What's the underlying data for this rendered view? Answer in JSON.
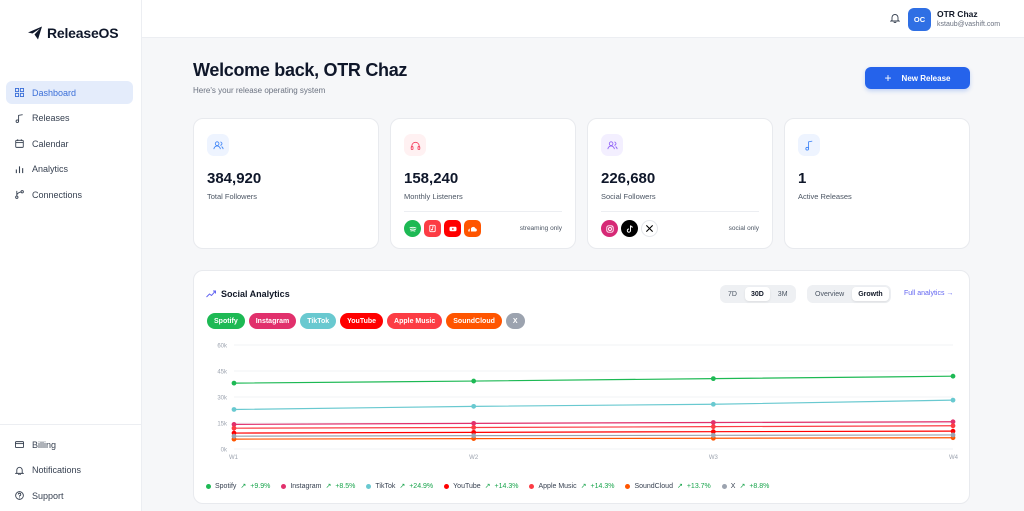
{
  "app": {
    "name": "ReleaseOS"
  },
  "sidebar": {
    "items": [
      {
        "label": "Dashboard",
        "icon": "grid-icon"
      },
      {
        "label": "Releases",
        "icon": "music-note-icon"
      },
      {
        "label": "Calendar",
        "icon": "calendar-icon"
      },
      {
        "label": "Analytics",
        "icon": "bar-chart-icon"
      },
      {
        "label": "Connections",
        "icon": "branch-icon"
      }
    ],
    "bottom_items": [
      {
        "label": "Billing",
        "icon": "credit-card-icon"
      },
      {
        "label": "Notifications",
        "icon": "bell-icon"
      },
      {
        "label": "Support",
        "icon": "help-circle-icon"
      }
    ]
  },
  "header": {
    "avatar_initials": "OC",
    "user_name": "OTR Chaz",
    "user_email": "kstaub@vashift.com"
  },
  "main": {
    "welcome": "Welcome back, OTR Chaz",
    "subtitle": "Here's your release operating system",
    "new_release_label": "New Release"
  },
  "stats": [
    {
      "value": "384,920",
      "label": "Total Followers",
      "icon": "users-icon"
    },
    {
      "value": "158,240",
      "label": "Monthly Listeners",
      "icon": "headphones-icon",
      "note": "streaming only"
    },
    {
      "value": "226,680",
      "label": "Social Followers",
      "icon": "users-icon",
      "note": "social only"
    },
    {
      "value": "1",
      "label": "Active Releases",
      "icon": "music-note-icon"
    }
  ],
  "analytics": {
    "title": "Social Analytics",
    "ranges": [
      "7D",
      "30D",
      "3M"
    ],
    "selected_range": "30D",
    "views": [
      "Overview",
      "Growth"
    ],
    "selected_view": "Growth",
    "full_link": "Full analytics →",
    "platforms": [
      {
        "name": "Spotify",
        "color": "#1db954"
      },
      {
        "name": "Instagram",
        "color": "#e1306c"
      },
      {
        "name": "TikTok",
        "color": "#69c9d0"
      },
      {
        "name": "YouTube",
        "color": "#ff0000"
      },
      {
        "name": "Apple Music",
        "color": "#fc3c44"
      },
      {
        "name": "SoundCloud",
        "color": "#ff5500"
      },
      {
        "name": "X",
        "color": "#9ca3af"
      }
    ]
  },
  "chart_data": {
    "type": "line",
    "x": [
      "W1",
      "W2",
      "W3",
      "W4"
    ],
    "yticks": [
      "0k",
      "15k",
      "30k",
      "45k",
      "60k"
    ],
    "ylim": [
      0,
      60000
    ],
    "series": [
      {
        "name": "Spotify",
        "values": [
          38000,
          39200,
          40600,
          42000
        ],
        "color": "#1db954",
        "delta": "+9.9%"
      },
      {
        "name": "Instagram",
        "values": [
          14200,
          14800,
          15300,
          15700
        ],
        "color": "#e1306c",
        "delta": "+8.5%"
      },
      {
        "name": "TikTok",
        "values": [
          22800,
          24600,
          25800,
          28200
        ],
        "color": "#69c9d0",
        "delta": "+24.9%"
      },
      {
        "name": "YouTube",
        "values": [
          9200,
          9600,
          10000,
          10300
        ],
        "color": "#ff0000",
        "delta": "+14.3%"
      },
      {
        "name": "Apple Music",
        "values": [
          12000,
          12400,
          12900,
          13400
        ],
        "color": "#fc3c44",
        "delta": "+14.3%"
      },
      {
        "name": "SoundCloud",
        "values": [
          5700,
          6000,
          6200,
          6500
        ],
        "color": "#ff5500",
        "delta": "+13.7%"
      },
      {
        "name": "X",
        "values": [
          7400,
          7700,
          7900,
          8100
        ],
        "color": "#9ca3af",
        "delta": "+8.8%"
      }
    ]
  }
}
